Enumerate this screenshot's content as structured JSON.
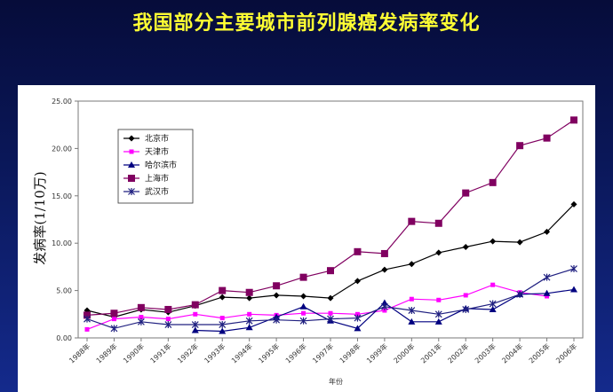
{
  "page": {
    "title": "我国部分主要城市前列腺癌发病率变化"
  },
  "chart_data": {
    "type": "line",
    "title": "",
    "xlabel": "年份",
    "ylabel": "发病率(1/10万)",
    "ylim": [
      0,
      25
    ],
    "yticks": [
      "0.00",
      "5.00",
      "10.00",
      "15.00",
      "20.00",
      "25.00"
    ],
    "categories": [
      "1988年",
      "1989年",
      "1990年",
      "1991年",
      "1992年",
      "1993年",
      "1994年",
      "1995年",
      "1996年",
      "1997年",
      "1998年",
      "1999年",
      "2000年",
      "2001年",
      "2002年",
      "2003年",
      "2004年",
      "2005年",
      "2006年"
    ],
    "grid": false,
    "legend_position": "top-left",
    "series": [
      {
        "name": "北京市",
        "color": "#000000",
        "marker": "diamond",
        "values": [
          2.9,
          2.2,
          3.0,
          2.7,
          3.4,
          4.3,
          4.2,
          4.5,
          4.4,
          4.2,
          6.0,
          7.2,
          7.8,
          9.0,
          9.6,
          10.2,
          10.1,
          11.2,
          14.1
        ]
      },
      {
        "name": "天津市",
        "color": "#ff00ff",
        "marker": "square",
        "values": [
          0.9,
          2.0,
          2.2,
          2.0,
          2.5,
          2.1,
          2.5,
          2.4,
          2.6,
          2.6,
          2.5,
          2.9,
          4.1,
          4.0,
          4.5,
          5.6,
          4.8,
          4.4,
          null
        ]
      },
      {
        "name": "哈尔滨市",
        "color": "#000080",
        "marker": "triangle",
        "values": [
          null,
          null,
          null,
          null,
          0.8,
          0.7,
          1.1,
          2.2,
          3.3,
          1.8,
          1.0,
          3.7,
          1.7,
          1.7,
          3.1,
          3.0,
          4.6,
          4.7,
          5.1
        ]
      },
      {
        "name": "上海市",
        "color": "#800060",
        "marker": "bigsquare",
        "values": [
          2.4,
          2.6,
          3.2,
          3.0,
          3.5,
          5.0,
          4.8,
          5.5,
          6.4,
          7.1,
          9.1,
          8.9,
          12.3,
          12.1,
          15.3,
          16.4,
          20.3,
          21.1,
          23.0
        ]
      },
      {
        "name": "武汉市",
        "color": "#202080",
        "marker": "star",
        "values": [
          2.0,
          1.0,
          1.7,
          1.4,
          1.4,
          1.4,
          1.8,
          1.9,
          1.8,
          2.0,
          2.1,
          3.3,
          2.9,
          2.5,
          3.0,
          3.6,
          4.6,
          6.4,
          7.3
        ]
      }
    ]
  }
}
